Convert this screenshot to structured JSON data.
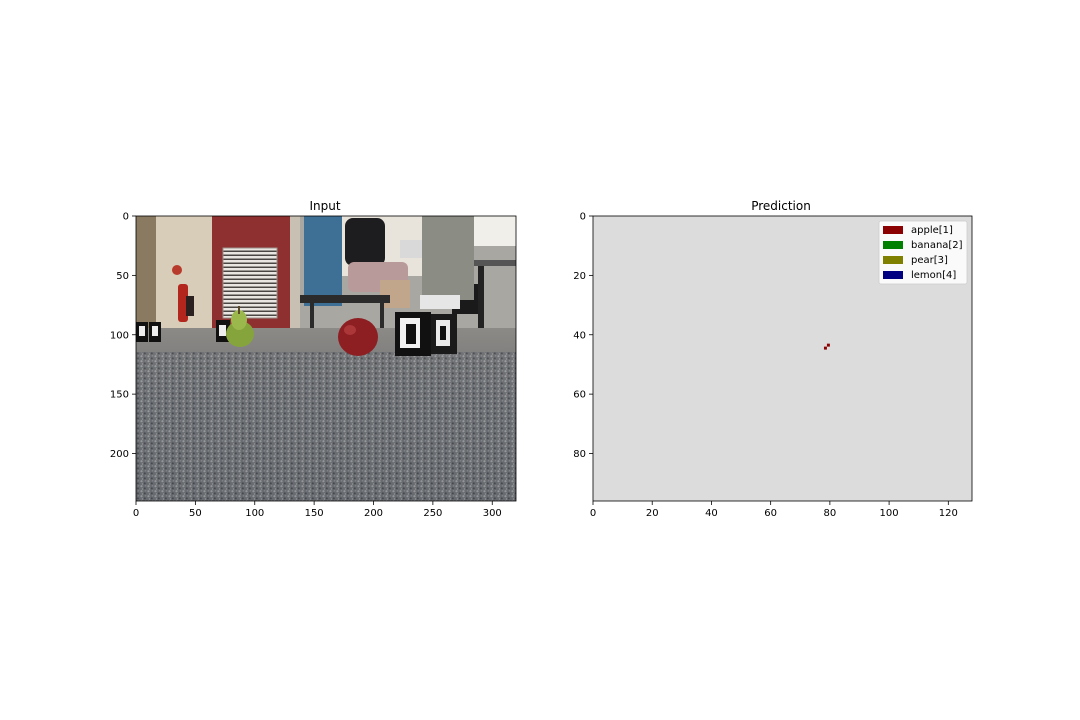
{
  "chart_data": [
    {
      "type": "image",
      "title": "Input",
      "xlim": [
        0,
        320
      ],
      "ylim": [
        240,
        0
      ],
      "xticks": [
        0,
        50,
        100,
        150,
        200,
        250,
        300
      ],
      "yticks": [
        0,
        50,
        100,
        150,
        200
      ],
      "xtick_labels": [
        "0",
        "50",
        "100",
        "150",
        "200",
        "250",
        "300"
      ],
      "ytick_labels": [
        "0",
        "50",
        "100",
        "150",
        "200"
      ],
      "image": {
        "description": "photograph",
        "objects": [
          {
            "name": "pear",
            "x": 88,
            "y": 96
          },
          {
            "name": "apple",
            "x": 188,
            "y": 100
          }
        ]
      }
    },
    {
      "type": "heatmap",
      "title": "Prediction",
      "xlim": [
        0,
        128
      ],
      "ylim": [
        96,
        0
      ],
      "xticks": [
        0,
        20,
        40,
        60,
        80,
        100,
        120
      ],
      "yticks": [
        0,
        20,
        40,
        60,
        80
      ],
      "xtick_labels": [
        "0",
        "20",
        "40",
        "60",
        "80",
        "100",
        "120"
      ],
      "ytick_labels": [
        "0",
        "20",
        "40",
        "60",
        "80"
      ],
      "background_color": "#dcdcdc",
      "legend": {
        "position": "upper right",
        "entries": [
          {
            "label": "apple[1]",
            "color": "#8b0000"
          },
          {
            "label": "banana[2]",
            "color": "#008000"
          },
          {
            "label": "pear[3]",
            "color": "#808000"
          },
          {
            "label": "lemon[4]",
            "color": "#000080"
          }
        ]
      },
      "pixels": [
        {
          "x": 78,
          "y": 44,
          "class": "apple[1]",
          "color": "#8b0000"
        },
        {
          "x": 79,
          "y": 43,
          "class": "apple[1]",
          "color": "#8b0000"
        }
      ]
    }
  ]
}
